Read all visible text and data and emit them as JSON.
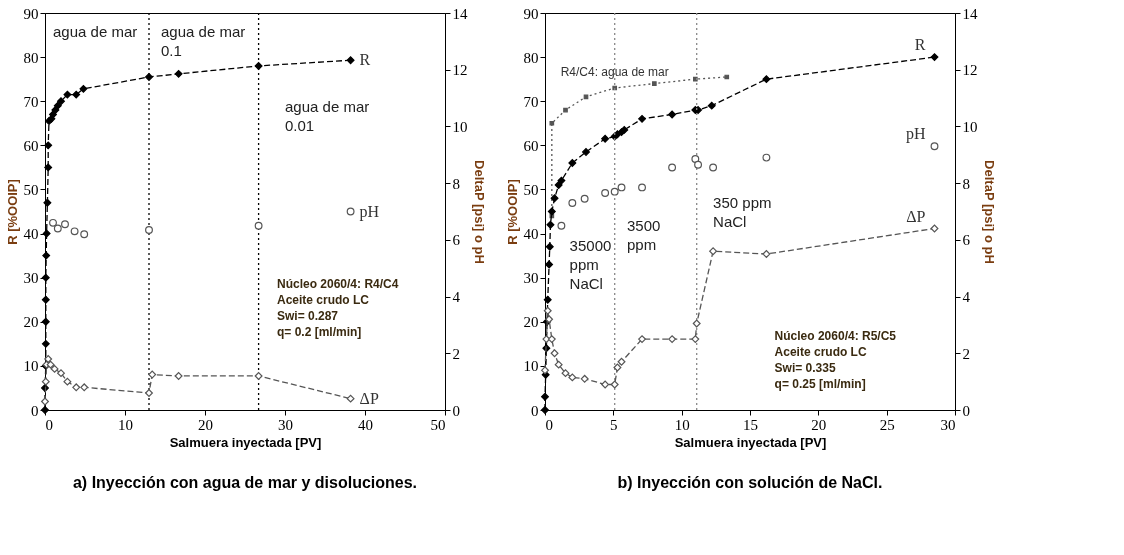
{
  "chart_data": [
    {
      "type": "line",
      "title": "a) Inyección con agua de mar y disoluciones.",
      "xlabel": "Salmuera inyectada [PV]",
      "ylabel": "R [%OOIP]",
      "y2label": "DeltaP [psi] o pH",
      "xlim": [
        0,
        50
      ],
      "xticks": [
        0,
        10,
        20,
        30,
        40,
        50
      ],
      "ylim": [
        0,
        90
      ],
      "yticks": [
        0,
        10,
        20,
        30,
        40,
        50,
        60,
        70,
        80,
        90
      ],
      "y2lim": [
        0,
        14
      ],
      "y2ticks": [
        0,
        2,
        4,
        6,
        8,
        10,
        12,
        14
      ],
      "grid": false,
      "series": [
        {
          "type": "line",
          "marker": "diamond",
          "line_style": "dashed",
          "color": "#000000",
          "x": [
            0,
            0,
            0.1,
            0.1,
            0.1,
            0.1,
            0.1,
            0.15,
            0.2,
            0.3,
            0.4,
            0.4,
            0.5,
            0.8,
            1.0,
            1.3,
            1.6,
            2,
            2.8,
            3.9,
            4.8,
            13,
            16.7,
            26.7,
            38.2
          ],
          "name": "R",
          "values": [
            0,
            5,
            10,
            15,
            20,
            25,
            30,
            35,
            40,
            47,
            55,
            60,
            65.5,
            66,
            67,
            68,
            69,
            70,
            71.5,
            71.5,
            72.8,
            75.5,
            76.2,
            78,
            79.3
          ]
        },
        {
          "type": "scatter",
          "marker": "circle",
          "name": "pH",
          "axis": "y2",
          "color": "#555555",
          "x": [
            1.0,
            1.6,
            2.5,
            3.7,
            4.9,
            13,
            26.7,
            38.2
          ],
          "values": [
            6.6,
            6.4,
            6.55,
            6.3,
            6.2,
            6.35,
            6.5,
            7.0
          ]
        },
        {
          "type": "line",
          "marker": "diamond",
          "line_style": "dashed",
          "axis": "y2",
          "color": "#555555",
          "x": [
            0,
            0.1,
            0.2,
            0.4,
            0.7,
            1.2,
            2,
            2.8,
            3.9,
            4.9,
            13,
            13.4,
            16.7,
            26.7,
            38.2
          ],
          "name": "ΔP",
          "values": [
            0.3,
            1.0,
            1.6,
            1.8,
            1.6,
            1.45,
            1.3,
            1.0,
            0.8,
            0.8,
            0.6,
            1.25,
            1.2,
            1.2,
            0.4
          ]
        }
      ],
      "ref_lines": [
        {
          "axis": "x",
          "value": 13,
          "color": "#000000",
          "line_style": "dotted"
        },
        {
          "axis": "x",
          "value": 26.7,
          "color": "#000000",
          "line_style": "dotted"
        }
      ],
      "annotations": [
        "agua de mar",
        "agua de mar\n0.1",
        "agua de mar\n0.01",
        "Núcleo 2060/4: R4/C4\nAceite crudo LC\nSwi= 0.287\nq= 0.2 [ml/min]"
      ]
    },
    {
      "type": "line",
      "title": "b) Inyección con solución de NaCl.",
      "xlabel": "Salmuera inyectada [PV]",
      "ylabel": "R [%OOIP]",
      "y2label": "DeltaP [psi] o pH",
      "xlim": [
        0,
        30
      ],
      "xticks": [
        0,
        5,
        10,
        15,
        20,
        25,
        30
      ],
      "ylim": [
        0,
        90
      ],
      "yticks": [
        0,
        10,
        20,
        30,
        40,
        50,
        60,
        70,
        80,
        90
      ],
      "y2lim": [
        0,
        14
      ],
      "y2ticks": [
        0,
        2,
        4,
        6,
        8,
        10,
        12,
        14
      ],
      "grid": false,
      "series": [
        {
          "type": "line",
          "marker": "square",
          "line_style": "dotted",
          "name": "R4/C4: agua de mar",
          "color": "#555555",
          "x": [
            0.5,
            0.5,
            1.5,
            3,
            5.1,
            8,
            11,
            13.3
          ],
          "values": [
            44,
            65,
            68,
            71,
            73,
            74,
            75,
            75.5
          ]
        },
        {
          "type": "line",
          "marker": "diamond",
          "line_style": "dashed",
          "color": "#000000",
          "x": [
            0,
            0,
            0.05,
            0.1,
            0.15,
            0.2,
            0.3,
            0.35,
            0.4,
            0.5,
            0.7,
            1.0,
            1.2,
            2,
            3,
            4.4,
            5.1,
            5.3,
            5.6,
            5.8,
            7.1,
            9.3,
            11,
            11.2,
            12.2,
            16.2,
            28.5
          ],
          "name": "R",
          "values": [
            0,
            3,
            8,
            14,
            20,
            25,
            33,
            37,
            42,
            45,
            48,
            51,
            52,
            56,
            58.5,
            61.5,
            62,
            62.5,
            63,
            63.5,
            66,
            67,
            68,
            68,
            69,
            75,
            80
          ]
        },
        {
          "type": "scatter",
          "marker": "circle",
          "name": "pH",
          "axis": "y2",
          "color": "#555555",
          "x": [
            1.2,
            2,
            2.9,
            4.4,
            5.1,
            5.6,
            7.1,
            9.3,
            11,
            11.2,
            12.3,
            16.2,
            28.5
          ],
          "values": [
            6.5,
            7.3,
            7.45,
            7.65,
            7.7,
            7.85,
            7.85,
            8.55,
            8.85,
            8.65,
            8.55,
            8.9,
            9.3
          ]
        },
        {
          "type": "line",
          "marker": "diamond",
          "line_style": "dashed",
          "axis": "y2",
          "color": "#555555",
          "x": [
            0,
            0.1,
            0.2,
            0.3,
            0.5,
            0.7,
            1.0,
            1.5,
            2,
            2.9,
            4.4,
            5.1,
            5.3,
            5.6,
            7.1,
            9.3,
            11,
            11.1,
            12.3,
            16.2,
            28.5
          ],
          "name": "ΔP",
          "values": [
            1.4,
            2.5,
            3.5,
            3.2,
            2.5,
            2.0,
            1.6,
            1.3,
            1.15,
            1.1,
            0.9,
            0.9,
            1.5,
            1.7,
            2.5,
            2.5,
            2.5,
            3.05,
            5.6,
            5.5,
            6.4
          ]
        }
      ],
      "ref_lines": [
        {
          "axis": "x",
          "value": 5.1,
          "color": "#888888",
          "line_style": "dotted"
        },
        {
          "axis": "x",
          "value": 11.1,
          "color": "#888888",
          "line_style": "dotted"
        }
      ],
      "annotations": [
        "35000\nppm\nNaCl",
        "3500\nppm",
        "350 ppm\nNaCl",
        "Núcleo 2060/4: R5/C5\nAceite crudo LC\nSwi= 0.335\nq= 0.25 [ml/min]"
      ]
    }
  ]
}
